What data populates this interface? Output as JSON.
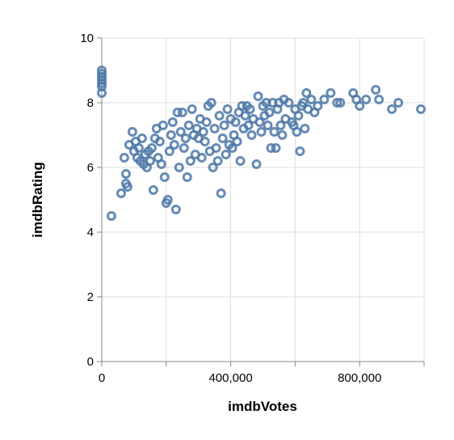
{
  "chart_data": {
    "type": "scatter",
    "xlabel": "imdbVotes",
    "ylabel": "imdbRating",
    "xlim": [
      0,
      1000000
    ],
    "ylim": [
      0,
      10
    ],
    "x_ticks": [
      0,
      200000,
      400000,
      600000,
      800000,
      1000000
    ],
    "x_tick_labels": [
      "0",
      "",
      "400,000",
      "",
      "800,000",
      ""
    ],
    "y_ticks": [
      0,
      2,
      4,
      6,
      8,
      10
    ],
    "y_tick_labels": [
      "0",
      "2",
      "4",
      "6",
      "8",
      "10"
    ],
    "grid": true,
    "point_color": "#4c78a8",
    "points": [
      [
        0,
        9.0
      ],
      [
        0,
        8.9
      ],
      [
        0,
        8.8
      ],
      [
        0,
        8.7
      ],
      [
        0,
        8.6
      ],
      [
        0,
        8.5
      ],
      [
        0,
        8.3
      ],
      [
        30000,
        4.5
      ],
      [
        60000,
        5.2
      ],
      [
        70000,
        6.3
      ],
      [
        75000,
        5.5
      ],
      [
        75000,
        5.8
      ],
      [
        80000,
        5.4
      ],
      [
        85000,
        6.7
      ],
      [
        95000,
        7.1
      ],
      [
        100000,
        6.5
      ],
      [
        105000,
        6.8
      ],
      [
        110000,
        6.3
      ],
      [
        115000,
        6.6
      ],
      [
        120000,
        6.2
      ],
      [
        125000,
        6.9
      ],
      [
        130000,
        6.1
      ],
      [
        135000,
        6.4
      ],
      [
        140000,
        6.0
      ],
      [
        145000,
        6.5
      ],
      [
        150000,
        6.2
      ],
      [
        155000,
        6.6
      ],
      [
        160000,
        5.3
      ],
      [
        165000,
        6.9
      ],
      [
        170000,
        7.2
      ],
      [
        175000,
        6.3
      ],
      [
        180000,
        6.8
      ],
      [
        185000,
        6.1
      ],
      [
        190000,
        7.3
      ],
      [
        195000,
        5.7
      ],
      [
        200000,
        4.9
      ],
      [
        205000,
        5.0
      ],
      [
        210000,
        6.5
      ],
      [
        215000,
        7.0
      ],
      [
        220000,
        7.4
      ],
      [
        225000,
        6.7
      ],
      [
        230000,
        4.7
      ],
      [
        235000,
        7.7
      ],
      [
        240000,
        6.0
      ],
      [
        245000,
        7.1
      ],
      [
        250000,
        7.7
      ],
      [
        255000,
        6.6
      ],
      [
        260000,
        6.9
      ],
      [
        265000,
        5.7
      ],
      [
        270000,
        7.3
      ],
      [
        275000,
        6.2
      ],
      [
        280000,
        7.8
      ],
      [
        285000,
        7.0
      ],
      [
        290000,
        6.4
      ],
      [
        295000,
        7.2
      ],
      [
        300000,
        6.9
      ],
      [
        305000,
        7.5
      ],
      [
        310000,
        6.3
      ],
      [
        315000,
        7.1
      ],
      [
        320000,
        6.8
      ],
      [
        325000,
        7.4
      ],
      [
        330000,
        7.9
      ],
      [
        335000,
        6.5
      ],
      [
        340000,
        8.0
      ],
      [
        345000,
        6.0
      ],
      [
        350000,
        7.2
      ],
      [
        355000,
        6.6
      ],
      [
        360000,
        6.2
      ],
      [
        365000,
        7.6
      ],
      [
        370000,
        5.2
      ],
      [
        375000,
        6.9
      ],
      [
        380000,
        7.3
      ],
      [
        385000,
        6.4
      ],
      [
        390000,
        7.8
      ],
      [
        395000,
        6.7
      ],
      [
        400000,
        7.5
      ],
      [
        405000,
        6.6
      ],
      [
        410000,
        7.0
      ],
      [
        415000,
        7.4
      ],
      [
        420000,
        6.8
      ],
      [
        425000,
        7.7
      ],
      [
        430000,
        6.2
      ],
      [
        435000,
        7.9
      ],
      [
        440000,
        7.2
      ],
      [
        445000,
        7.6
      ],
      [
        450000,
        7.9
      ],
      [
        455000,
        7.3
      ],
      [
        460000,
        7.8
      ],
      [
        465000,
        7.0
      ],
      [
        470000,
        7.5
      ],
      [
        480000,
        6.1
      ],
      [
        485000,
        8.2
      ],
      [
        490000,
        7.4
      ],
      [
        495000,
        7.1
      ],
      [
        500000,
        7.9
      ],
      [
        505000,
        7.6
      ],
      [
        510000,
        8.0
      ],
      [
        515000,
        7.3
      ],
      [
        520000,
        7.7
      ],
      [
        525000,
        6.6
      ],
      [
        530000,
        8.0
      ],
      [
        535000,
        7.1
      ],
      [
        540000,
        6.6
      ],
      [
        545000,
        7.8
      ],
      [
        550000,
        8.0
      ],
      [
        555000,
        7.3
      ],
      [
        560000,
        7.0
      ],
      [
        565000,
        8.1
      ],
      [
        570000,
        7.5
      ],
      [
        580000,
        8.0
      ],
      [
        590000,
        7.4
      ],
      [
        595000,
        7.3
      ],
      [
        600000,
        7.8
      ],
      [
        605000,
        7.1
      ],
      [
        610000,
        7.6
      ],
      [
        615000,
        6.5
      ],
      [
        620000,
        7.9
      ],
      [
        625000,
        8.0
      ],
      [
        630000,
        7.2
      ],
      [
        635000,
        8.3
      ],
      [
        640000,
        7.8
      ],
      [
        650000,
        8.1
      ],
      [
        660000,
        7.7
      ],
      [
        670000,
        7.9
      ],
      [
        690000,
        8.1
      ],
      [
        710000,
        8.3
      ],
      [
        730000,
        8.0
      ],
      [
        740000,
        8.0
      ],
      [
        780000,
        8.3
      ],
      [
        790000,
        8.1
      ],
      [
        800000,
        7.9
      ],
      [
        820000,
        8.1
      ],
      [
        850000,
        8.4
      ],
      [
        860000,
        8.1
      ],
      [
        900000,
        7.8
      ],
      [
        920000,
        8.0
      ],
      [
        990000,
        7.8
      ]
    ]
  }
}
